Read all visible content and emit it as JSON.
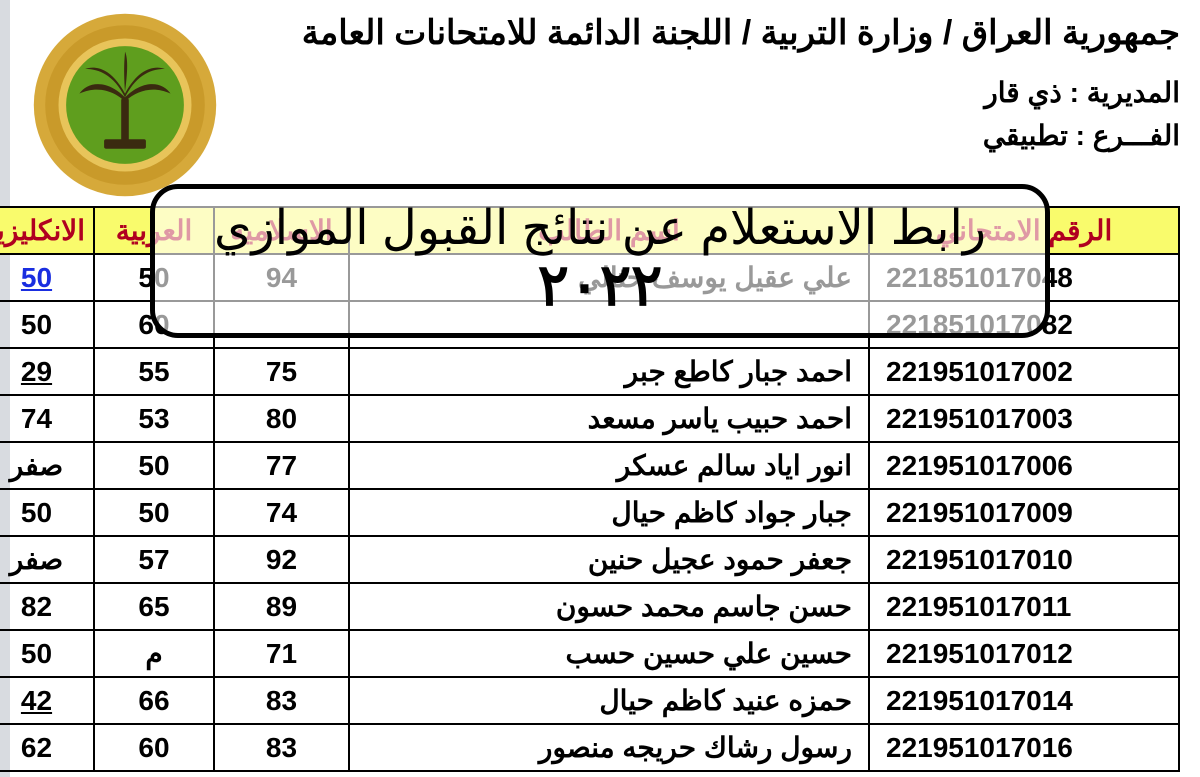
{
  "header": {
    "title": "جمهورية العراق / وزارة التربية / اللجنة الدائمة للامتحانات العامة",
    "directorate_label": "المديرية :",
    "directorate_value": "ذي قار",
    "branch_label": "الفـــرع :",
    "branch_value": "تطبيقي"
  },
  "emblem": {
    "outer_ring": "#d6a93a",
    "mid_ring": "#c99a2a",
    "inner": "#5f9e1e",
    "tree": "#3a2a10"
  },
  "table": {
    "headers": {
      "id": "الرقم الامتحاني",
      "name": "اسم الطالب",
      "sub1": "الاسلامية",
      "sub2": "العربية",
      "sub3": "الانكليزية"
    },
    "colors": {
      "header_bg": "#f9fb6c",
      "header_fg": "#b00020",
      "border": "#000000"
    },
    "rows": [
      {
        "id": "221851017048",
        "name": "علي عقيل يوسف حثالي",
        "s1": "94",
        "s2": "50",
        "s3": "50",
        "s3_style": "blue underline"
      },
      {
        "id": "221851017082",
        "name": "",
        "s1": "",
        "s2": "60",
        "s3": "50"
      },
      {
        "id": "221951017002",
        "name": "احمد جبار كاطع جبر",
        "s1": "75",
        "s2": "55",
        "s3": "29",
        "s3_style": "underline"
      },
      {
        "id": "221951017003",
        "name": "احمد حبيب ياسر مسعد",
        "s1": "80",
        "s2": "53",
        "s3": "74"
      },
      {
        "id": "221951017006",
        "name": "انور اياد سالم عسكر",
        "s1": "77",
        "s2": "50",
        "s3": "صفر"
      },
      {
        "id": "221951017009",
        "name": "جبار جواد كاظم حيال",
        "s1": "74",
        "s2": "50",
        "s3": "50"
      },
      {
        "id": "221951017010",
        "name": "جعفر حمود عجيل حنين",
        "s1": "92",
        "s2": "57",
        "s3": "صفر"
      },
      {
        "id": "221951017011",
        "name": "حسن جاسم محمد حسون",
        "s1": "89",
        "s2": "65",
        "s3": "82"
      },
      {
        "id": "221951017012",
        "name": "حسين علي حسين حسب",
        "s1": "71",
        "s2": "م",
        "s3": "50"
      },
      {
        "id": "221951017014",
        "name": "حمزه عنيد كاظم حيال",
        "s1": "83",
        "s2": "66",
        "s3": "42",
        "s3_style": "underline"
      },
      {
        "id": "221951017016",
        "name": "رسول رشاك حريجه منصور",
        "s1": "83",
        "s2": "60",
        "s3": "62"
      }
    ]
  },
  "overlay": {
    "text": "رابط الاستعلام عن نتائج القبول الموازي",
    "year": "٢٠٢٢"
  }
}
